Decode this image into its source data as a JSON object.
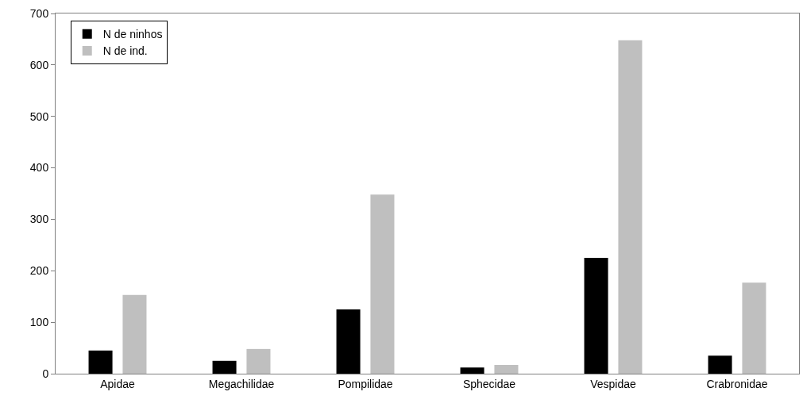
{
  "chart_data": {
    "type": "bar",
    "categories": [
      "Apidae",
      "Megachilidae",
      "Pompilidae",
      "Sphecidae",
      "Vespidae",
      "Crabronidae"
    ],
    "series": [
      {
        "name": "N de ninhos",
        "color": "#000000",
        "values": [
          45,
          25,
          125,
          12,
          225,
          35
        ]
      },
      {
        "name": "N de ind.",
        "color": "#bfbfbf",
        "values": [
          153,
          48,
          348,
          17,
          648,
          177
        ]
      }
    ],
    "ylim": [
      0,
      700
    ],
    "yticks": [
      0,
      100,
      200,
      300,
      400,
      500,
      600,
      700
    ],
    "grid": false,
    "legend": "top left"
  }
}
